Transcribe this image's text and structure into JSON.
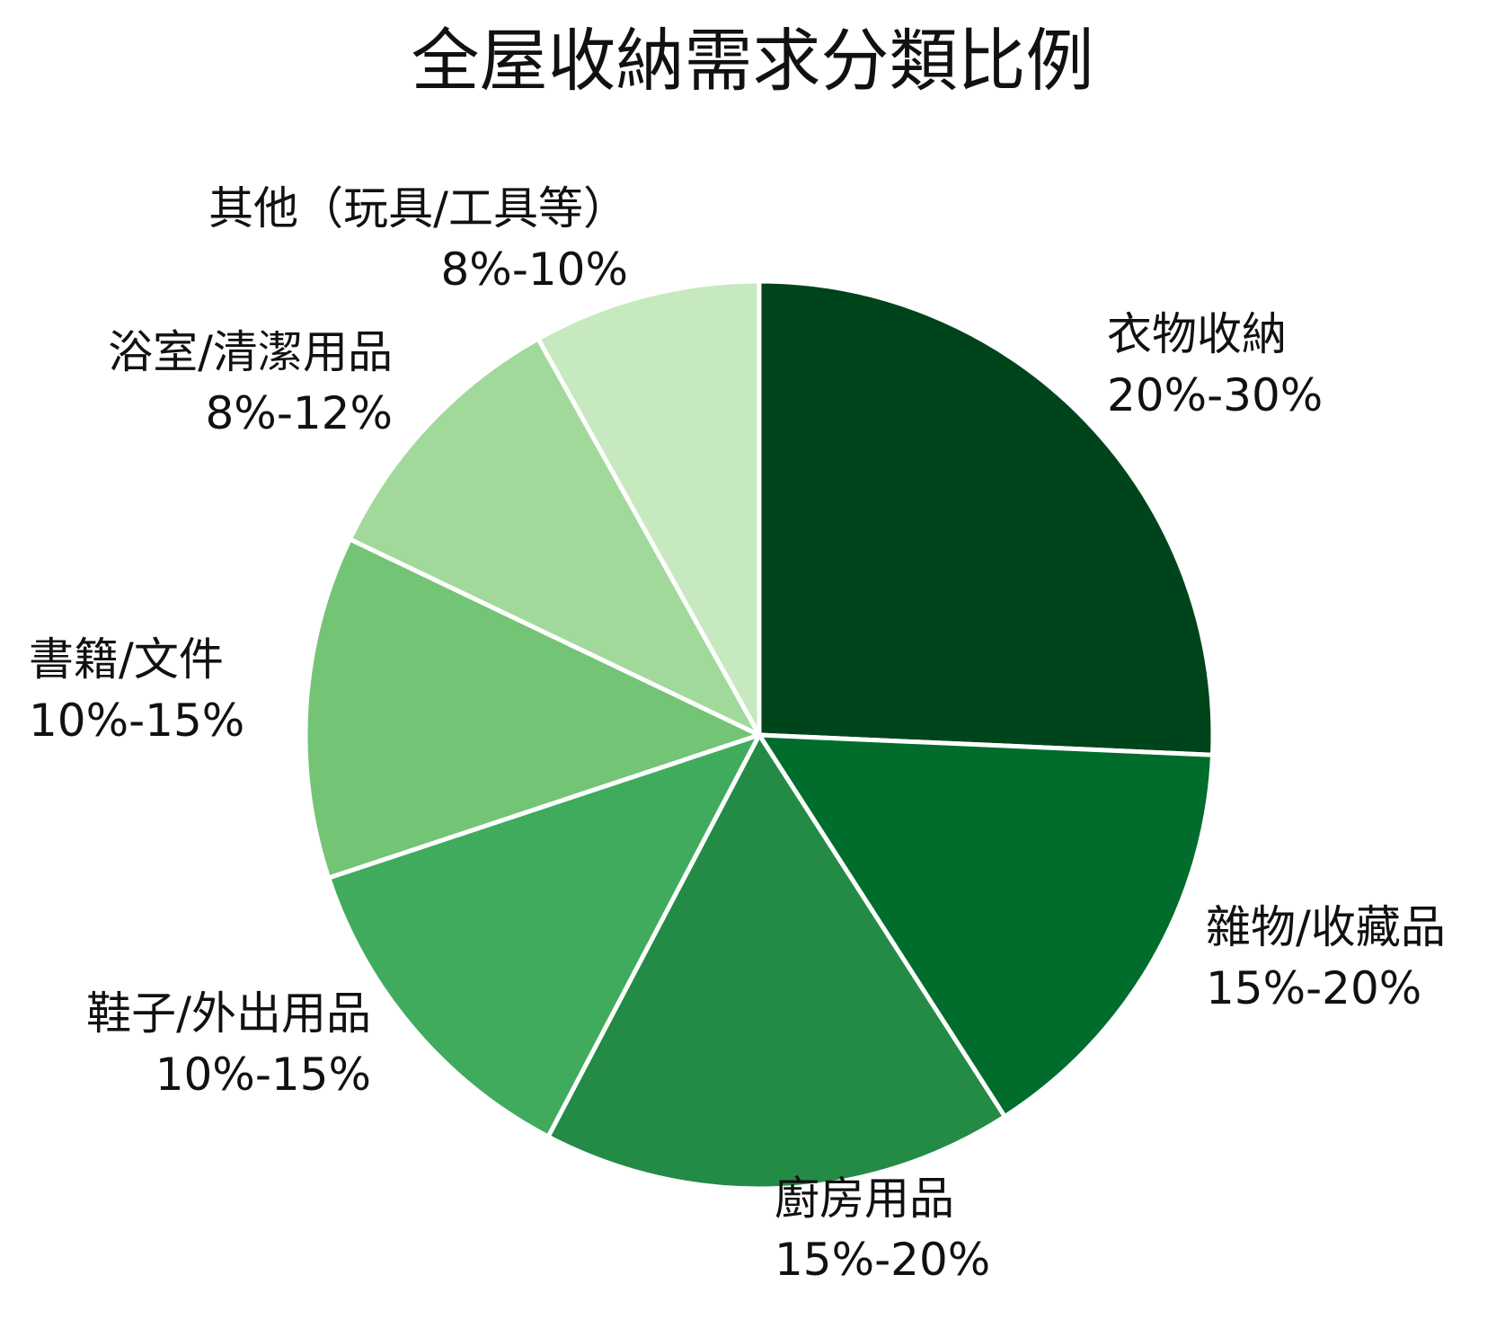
{
  "chart_data": {
    "type": "pie",
    "title": "全屋收納需求分類比例",
    "start_angle_deg": 0,
    "direction": "clockwise",
    "center": [
      845,
      818
    ],
    "radius": 505,
    "slices": [
      {
        "label": "衣物收納",
        "range": "20%-30%",
        "value": 25.7,
        "color": "#00441b"
      },
      {
        "label": "雜物/收藏品",
        "range": "15%-20%",
        "value": 15.2,
        "color": "#006d2c"
      },
      {
        "label": "廚房用品",
        "range": "15%-20%",
        "value": 16.8,
        "color": "#238b45"
      },
      {
        "label": "鞋子/外出用品",
        "range": "10%-15%",
        "value": 12.2,
        "color": "#41ab5d"
      },
      {
        "label": "書籍/文件",
        "range": "10%-15%",
        "value": 12.2,
        "color": "#74c476"
      },
      {
        "label": "浴室/清潔用品",
        "range": "8%-12%",
        "value": 9.8,
        "color": "#a1d99b"
      },
      {
        "label": "其他（玩具/工具等）",
        "range": "8%-10%",
        "value": 8.1,
        "color": "#c7e9c0"
      }
    ],
    "legend": "none (direct labels)"
  },
  "labels": [
    {
      "name": "衣物收納",
      "range": "20%-30%"
    },
    {
      "name": "雜物/收藏品",
      "range": "15%-20%"
    },
    {
      "name": "廚房用品",
      "range": "15%-20%"
    },
    {
      "name": "鞋子/外出用品",
      "range": "10%-15%"
    },
    {
      "name": "書籍/文件",
      "range": "10%-15%"
    },
    {
      "name": "浴室/清潔用品",
      "range": "8%-12%"
    },
    {
      "name": "其他（玩具/工具等）",
      "range": "8%-10%"
    }
  ]
}
